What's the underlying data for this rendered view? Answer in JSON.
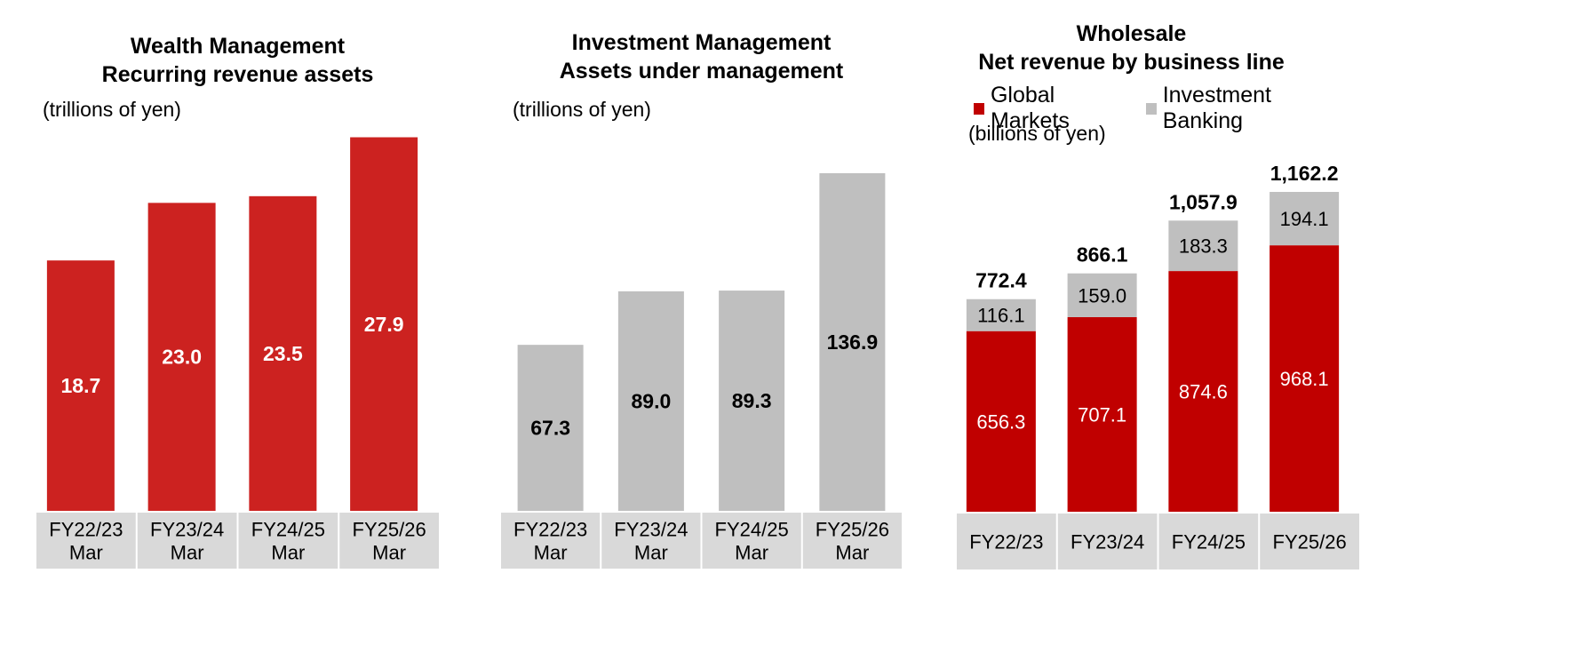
{
  "colors": {
    "wm_bar": "#cc2220",
    "im_bar": "#bfbfbf",
    "global_markets": "#c00000",
    "investment_banking": "#bfbfbf",
    "axis_box": "#d9d9d9"
  },
  "chart_data": [
    {
      "type": "bar",
      "title": "Wealth Management\nRecurring revenue assets",
      "title_lines": [
        "Wealth Management",
        "Recurring revenue assets"
      ],
      "unit_label": "(trillions of yen)",
      "categories": [
        "FY22/23\nMar",
        "FY23/24\nMar",
        "FY24/25\nMar",
        "FY25/26\nMar"
      ],
      "category_lines": [
        [
          "FY22/23",
          "Mar"
        ],
        [
          "FY23/24",
          "Mar"
        ],
        [
          "FY24/25",
          "Mar"
        ],
        [
          "FY25/26",
          "Mar"
        ]
      ],
      "values": [
        18.7,
        23.0,
        23.5,
        27.9
      ],
      "value_labels": [
        "18.7",
        "23.0",
        "23.5",
        "27.9"
      ],
      "ylim": [
        0,
        28
      ]
    },
    {
      "type": "bar",
      "title": "Investment Management\nAssets under management",
      "title_lines": [
        "Investment Management",
        "Assets under management"
      ],
      "unit_label": "(trillions of yen)",
      "categories": [
        "FY22/23\nMar",
        "FY23/24\nMar",
        "FY24/25\nMar",
        "FY25/26\nMar"
      ],
      "category_lines": [
        [
          "FY22/23",
          "Mar"
        ],
        [
          "FY23/24",
          "Mar"
        ],
        [
          "FY24/25",
          "Mar"
        ],
        [
          "FY25/26",
          "Mar"
        ]
      ],
      "values": [
        67.3,
        89.0,
        89.3,
        136.9
      ],
      "value_labels": [
        "67.3",
        "89.0",
        "89.3",
        "136.9"
      ],
      "ylim": [
        0,
        152
      ]
    },
    {
      "type": "bar",
      "stacked": true,
      "title": "Wholesale\nNet revenue by business line",
      "title_lines": [
        "Wholesale",
        "Net revenue by business line"
      ],
      "unit_label": "(billions of yen)",
      "categories": [
        "FY22/23",
        "FY23/24",
        "FY24/25",
        "FY25/26"
      ],
      "series": [
        {
          "name": "Global Markets",
          "values": [
            656.3,
            707.1,
            874.6,
            968.1
          ],
          "labels": [
            "656.3",
            "707.1",
            "874.6",
            "968.1"
          ]
        },
        {
          "name": "Investment Banking",
          "values": [
            116.1,
            159.0,
            183.3,
            194.1
          ],
          "labels": [
            "116.1",
            "159.0",
            "183.3",
            "194.1"
          ]
        }
      ],
      "totals": [
        "772.4",
        "866.1",
        "1,057.9",
        "1,162.2"
      ],
      "total_values": [
        772.4,
        866.1,
        1057.9,
        1162.2
      ],
      "ylim": [
        0,
        1245
      ]
    }
  ]
}
